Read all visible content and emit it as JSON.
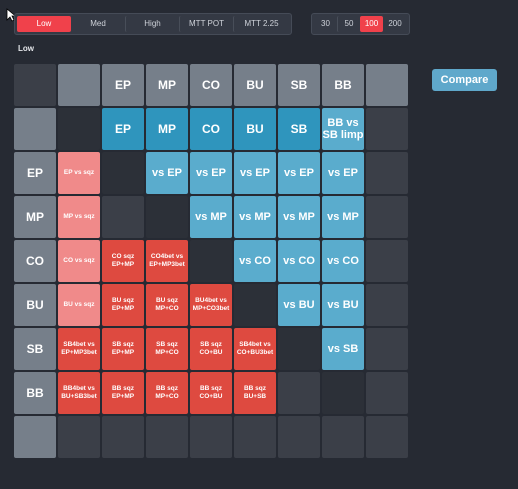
{
  "stack_tabs": [
    "Low",
    "Med",
    "High",
    "MTT POT",
    "MTT 2.25"
  ],
  "stack_active": 0,
  "depth_tabs": [
    "30",
    "50",
    "100",
    "200"
  ],
  "depth_active": 2,
  "section_label": "Low",
  "compare_label": "Compare",
  "grid": [
    [
      [
        "empty",
        ""
      ],
      [
        "grey",
        ""
      ],
      [
        "grey",
        "EP"
      ],
      [
        "grey",
        "MP"
      ],
      [
        "grey",
        "CO"
      ],
      [
        "grey",
        "BU"
      ],
      [
        "grey",
        "SB"
      ],
      [
        "grey",
        "BB"
      ],
      [
        "grey",
        ""
      ]
    ],
    [
      [
        "grey",
        ""
      ],
      [
        "dark",
        ""
      ],
      [
        "teal",
        "EP"
      ],
      [
        "teal",
        "MP"
      ],
      [
        "teal",
        "CO"
      ],
      [
        "teal",
        "BU"
      ],
      [
        "teal",
        "SB"
      ],
      [
        "sky",
        "BB vs SB limp"
      ],
      [
        "empty",
        ""
      ]
    ],
    [
      [
        "grey",
        "EP"
      ],
      [
        "pink",
        "EP vs sqz"
      ],
      [
        "dark",
        ""
      ],
      [
        "sky",
        "vs EP"
      ],
      [
        "sky",
        "vs EP"
      ],
      [
        "sky",
        "vs EP"
      ],
      [
        "sky",
        "vs EP"
      ],
      [
        "sky",
        "vs EP"
      ],
      [
        "empty",
        ""
      ]
    ],
    [
      [
        "grey",
        "MP"
      ],
      [
        "pink",
        "MP vs sqz"
      ],
      [
        "empty",
        ""
      ],
      [
        "dark",
        ""
      ],
      [
        "sky",
        "vs MP"
      ],
      [
        "sky",
        "vs MP"
      ],
      [
        "sky",
        "vs MP"
      ],
      [
        "sky",
        "vs MP"
      ],
      [
        "empty",
        ""
      ]
    ],
    [
      [
        "grey",
        "CO"
      ],
      [
        "pink",
        "CO vs sqz"
      ],
      [
        "red",
        "CO sqz EP+MP"
      ],
      [
        "red",
        "CO4bet vs EP+MP3bet"
      ],
      [
        "dark",
        ""
      ],
      [
        "sky",
        "vs CO"
      ],
      [
        "sky",
        "vs CO"
      ],
      [
        "sky",
        "vs CO"
      ],
      [
        "empty",
        ""
      ]
    ],
    [
      [
        "grey",
        "BU"
      ],
      [
        "pink",
        "BU vs sqz"
      ],
      [
        "red",
        "BU sqz EP+MP"
      ],
      [
        "red",
        "BU sqz MP+CO"
      ],
      [
        "red",
        "BU4bet vs MP+CO3bet"
      ],
      [
        "dark",
        ""
      ],
      [
        "sky",
        "vs BU"
      ],
      [
        "sky",
        "vs BU"
      ],
      [
        "empty",
        ""
      ]
    ],
    [
      [
        "grey",
        "SB"
      ],
      [
        "red",
        "SB4bet vs EP+MP3bet"
      ],
      [
        "red",
        "SB sqz EP+MP"
      ],
      [
        "red",
        "SB sqz MP+CO"
      ],
      [
        "red",
        "SB sqz CO+BU"
      ],
      [
        "red",
        "SB4bet vs CO+BU3bet"
      ],
      [
        "dark",
        ""
      ],
      [
        "sky",
        "vs SB"
      ],
      [
        "empty",
        ""
      ]
    ],
    [
      [
        "grey",
        "BB"
      ],
      [
        "red",
        "BB4bet vs BU+SB3bet"
      ],
      [
        "red",
        "BB sqz EP+MP"
      ],
      [
        "red",
        "BB sqz MP+CO"
      ],
      [
        "red",
        "BB sqz CO+BU"
      ],
      [
        "red",
        "BB sqz BU+SB"
      ],
      [
        "empty",
        ""
      ],
      [
        "dark",
        ""
      ],
      [
        "empty",
        ""
      ]
    ],
    [
      [
        "grey",
        ""
      ],
      [
        "empty",
        ""
      ],
      [
        "empty",
        ""
      ],
      [
        "empty",
        ""
      ],
      [
        "empty",
        ""
      ],
      [
        "empty",
        ""
      ],
      [
        "empty",
        ""
      ],
      [
        "empty",
        ""
      ],
      [
        "empty",
        ""
      ]
    ]
  ]
}
